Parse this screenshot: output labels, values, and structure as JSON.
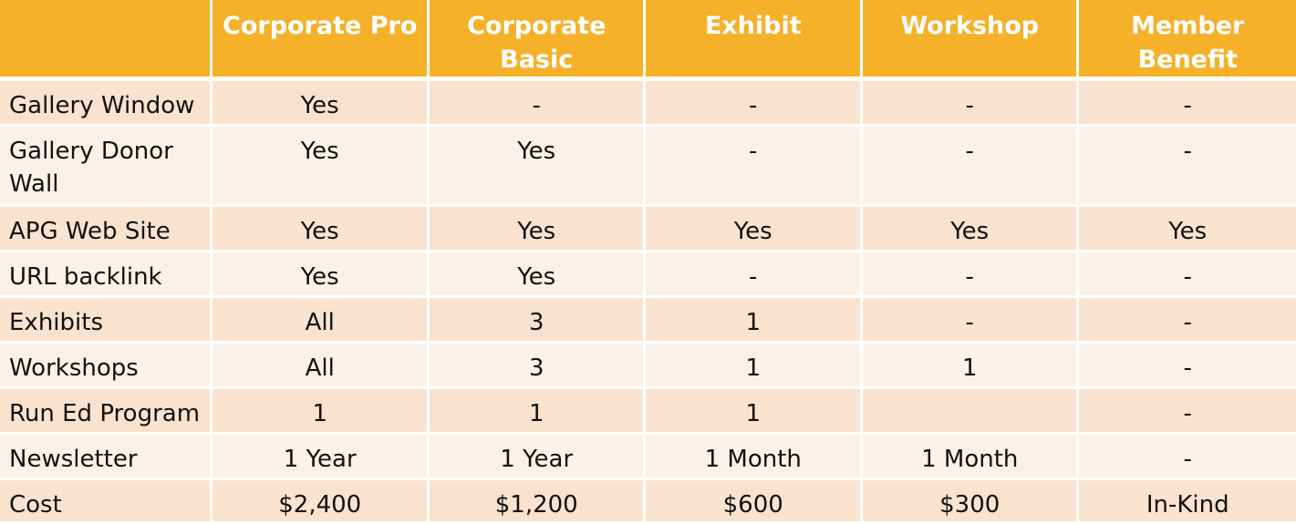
{
  "table": {
    "headers": [
      "",
      "Corporate Pro",
      "Corporate Basic",
      "Exhibit",
      "Workshop",
      "Member Benefit"
    ],
    "rows": [
      {
        "label": "Gallery Window",
        "values": [
          "Yes",
          "-",
          "-",
          "-",
          "-"
        ]
      },
      {
        "label": "Gallery Donor Wall",
        "values": [
          "Yes",
          "Yes",
          "-",
          "-",
          "-"
        ]
      },
      {
        "label": "APG Web Site",
        "values": [
          "Yes",
          "Yes",
          "Yes",
          "Yes",
          "Yes"
        ]
      },
      {
        "label": "URL backlink",
        "values": [
          "Yes",
          "Yes",
          "-",
          "-",
          "-"
        ]
      },
      {
        "label": "Exhibits",
        "values": [
          "All",
          "3",
          "1",
          "-",
          "-"
        ]
      },
      {
        "label": "Workshops",
        "values": [
          "All",
          "3",
          "1",
          "1",
          "-"
        ]
      },
      {
        "label": "Run Ed Program",
        "values": [
          "1",
          "1",
          "1",
          "",
          "-"
        ]
      },
      {
        "label": "Newsletter",
        "values": [
          "1 Year",
          "1 Year",
          "1 Month",
          "1 Month",
          "-"
        ]
      },
      {
        "label": "Cost",
        "values": [
          "$2,400",
          "$1,200",
          "$600",
          "$300",
          "In-Kind"
        ]
      }
    ],
    "colors": {
      "header": "#F5B12A",
      "row_odd": "#FAE3CE",
      "row_even": "#FCF1E9"
    }
  }
}
